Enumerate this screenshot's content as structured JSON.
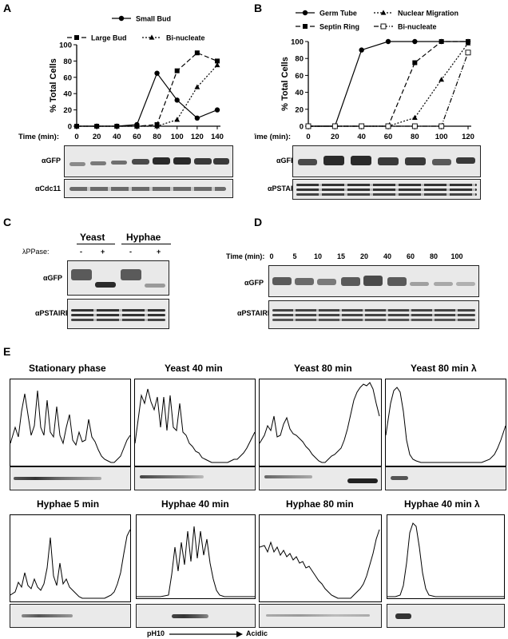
{
  "panels": {
    "A": {
      "letter": "A",
      "chart_data": {
        "type": "line",
        "ylabel": "% Total Cells",
        "xlabel": "Time (min):",
        "x": [
          0,
          20,
          40,
          60,
          80,
          100,
          120,
          140
        ],
        "ylim": [
          0,
          100
        ],
        "yticks": [
          0,
          20,
          40,
          60,
          80,
          100
        ],
        "series": [
          {
            "name": "Small Bud",
            "marker": "circle",
            "style": "solid",
            "values": [
              0,
              0,
              0,
              2,
              65,
              32,
              10,
              20
            ]
          },
          {
            "name": "Large Bud",
            "marker": "square",
            "style": "dashed",
            "values": [
              0,
              0,
              0,
              0,
              2,
              68,
              90,
              80
            ]
          },
          {
            "name": "Bi-nucleate",
            "marker": "triangle",
            "style": "dotted",
            "values": [
              0,
              0,
              0,
              0,
              0,
              8,
              48,
              75
            ]
          }
        ]
      },
      "blot_labels": [
        "αGFP",
        "αCdc11"
      ]
    },
    "B": {
      "letter": "B",
      "chart_data": {
        "type": "line",
        "ylabel": "% Total Cells",
        "xlabel": "Time (min):",
        "x": [
          0,
          20,
          40,
          60,
          80,
          100,
          120
        ],
        "ylim": [
          0,
          100
        ],
        "yticks": [
          0,
          20,
          40,
          60,
          80,
          100
        ],
        "series": [
          {
            "name": "Germ Tube",
            "marker": "circle",
            "style": "solid",
            "values": [
              0,
              0,
              90,
              100,
              100,
              100,
              100
            ]
          },
          {
            "name": "Septin Ring",
            "marker": "square",
            "style": "dashed",
            "values": [
              0,
              0,
              0,
              0,
              75,
              100,
              100
            ]
          },
          {
            "name": "Nuclear Migration",
            "marker": "triangle",
            "style": "dotted",
            "values": [
              0,
              0,
              0,
              0,
              10,
              55,
              98
            ]
          },
          {
            "name": "Bi-nucleate",
            "marker": "open-square",
            "style": "dashdot",
            "values": [
              0,
              0,
              0,
              0,
              0,
              0,
              87
            ]
          }
        ]
      },
      "blot_labels": [
        "αGFP",
        "αPSTAIRE"
      ]
    },
    "C": {
      "letter": "C",
      "groups": [
        "Yeast",
        "Hyphae"
      ],
      "treatment_label": "λPPase:",
      "treatment_values": [
        "-",
        "+",
        "-",
        "+"
      ],
      "blot_labels": [
        "αGFP",
        "αPSTAIRE"
      ]
    },
    "D": {
      "letter": "D",
      "time_label": "Time (min):",
      "times": [
        "0",
        "5",
        "10",
        "15",
        "20",
        "40",
        "60",
        "80",
        "100"
      ],
      "blot_labels": [
        "αGFP",
        "αPSTAIRE"
      ]
    },
    "E": {
      "letter": "E",
      "row1": [
        "Stationary phase",
        "Yeast 40 min",
        "Yeast 80 min",
        "Yeast 80 min λ"
      ],
      "row2": [
        "Hyphae 5 min",
        "Hyphae 40 min",
        "Hyphae 80 min",
        "Hyphae 40 min λ"
      ],
      "axis_left": "pH10",
      "axis_right": "Acidic"
    }
  }
}
